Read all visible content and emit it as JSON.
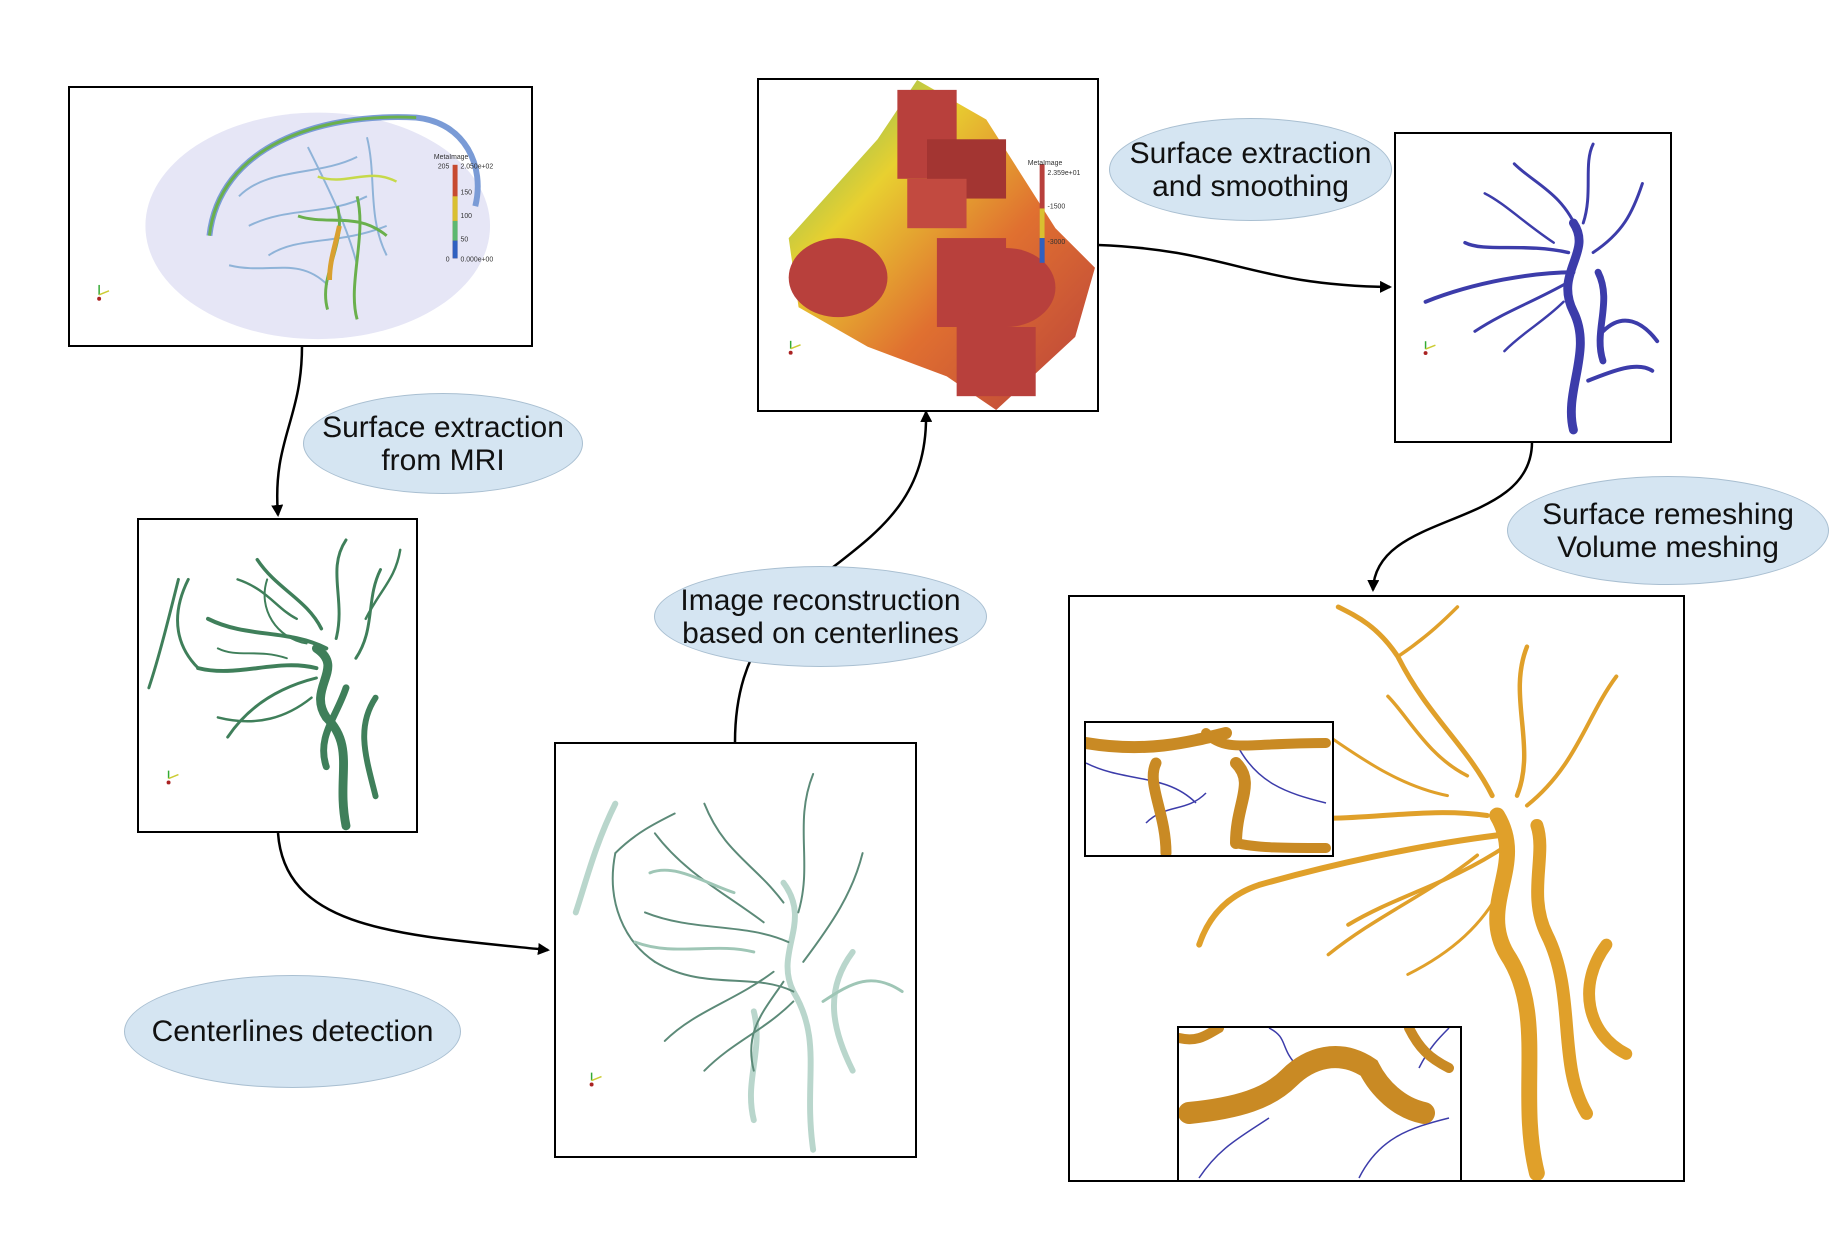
{
  "steps": {
    "surface_from_mri": "Surface extraction\nfrom MRI",
    "centerlines": "Centerlines detection",
    "reconstruction": "Image reconstruction\nbased on centerlines",
    "surface_smoothing": "Surface extraction\nand smoothing",
    "remeshing": "Surface remeshing\nVolume meshing"
  },
  "mri_legend": {
    "title": "MetaImage",
    "max": "2.050e+02",
    "min": "0.000e+00",
    "ticks": [
      "205",
      "150",
      "100",
      "50",
      "0"
    ]
  },
  "recon_legend": {
    "title": "MetaImage",
    "max": "2.359e+01",
    "ticks": [
      "-1500",
      "-3000"
    ]
  },
  "colors": {
    "mri_vessel": "#6ab04c",
    "centerline_green": "#3f7f5a",
    "recon_red": "#b8403c",
    "smooth_blue": "#3c3caa",
    "mesh_orange": "#e0a02a",
    "bubble": "#d5e5f2"
  }
}
